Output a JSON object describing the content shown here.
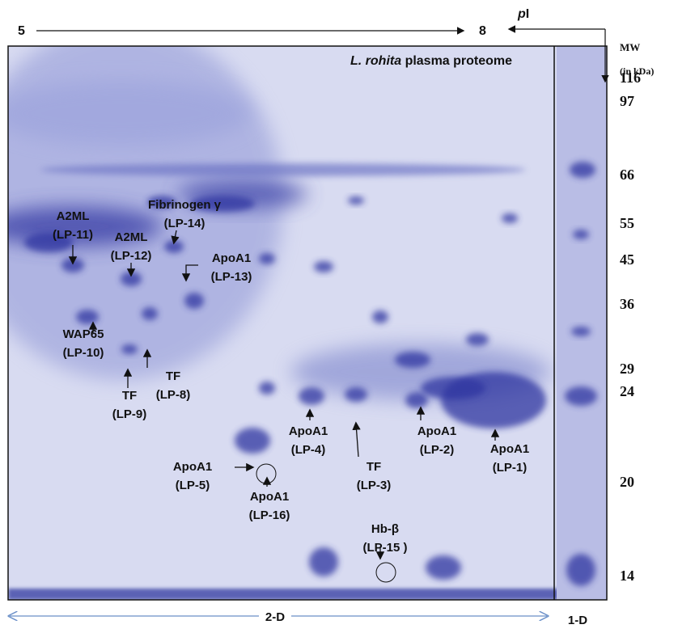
{
  "figure": {
    "title": {
      "species": "L. rohita",
      "rest": "plasma proteome"
    },
    "pi_axis": {
      "start": "5",
      "end": "8",
      "label_italic": "p",
      "label_rest": "I"
    },
    "mw_axis": {
      "title": "MW",
      "unit": "(in kDa)",
      "markers": [
        "116",
        "97",
        "66",
        "55",
        "45",
        "36",
        "29",
        "24",
        "20",
        "14"
      ]
    },
    "bottom": {
      "gel_2d": "2-D",
      "gel_1d": "1-D"
    },
    "spots": [
      {
        "name": "A2ML",
        "id": "(LP-11)"
      },
      {
        "name": "A2ML",
        "id": "(LP-12)"
      },
      {
        "name": "Fibrinogen γ",
        "id": "(LP-14)"
      },
      {
        "name": "ApoA1",
        "id": "(LP-13)"
      },
      {
        "name": "WAP65",
        "id": "(LP-10)"
      },
      {
        "name": "TF",
        "id": "(LP-9)"
      },
      {
        "name": "TF",
        "id": "(LP-8)"
      },
      {
        "name": "ApoA1",
        "id": "(LP-4)"
      },
      {
        "name": "TF",
        "id": "(LP-3)"
      },
      {
        "name": "ApoA1",
        "id": "(LP-2)"
      },
      {
        "name": "ApoA1",
        "id": "(LP-1)"
      },
      {
        "name": "ApoA1",
        "id": "(LP-5)"
      },
      {
        "name": "ApoA1",
        "id": "(LP-16)"
      },
      {
        "name": "Hb-β",
        "id": "(LP-15 )"
      }
    ]
  }
}
